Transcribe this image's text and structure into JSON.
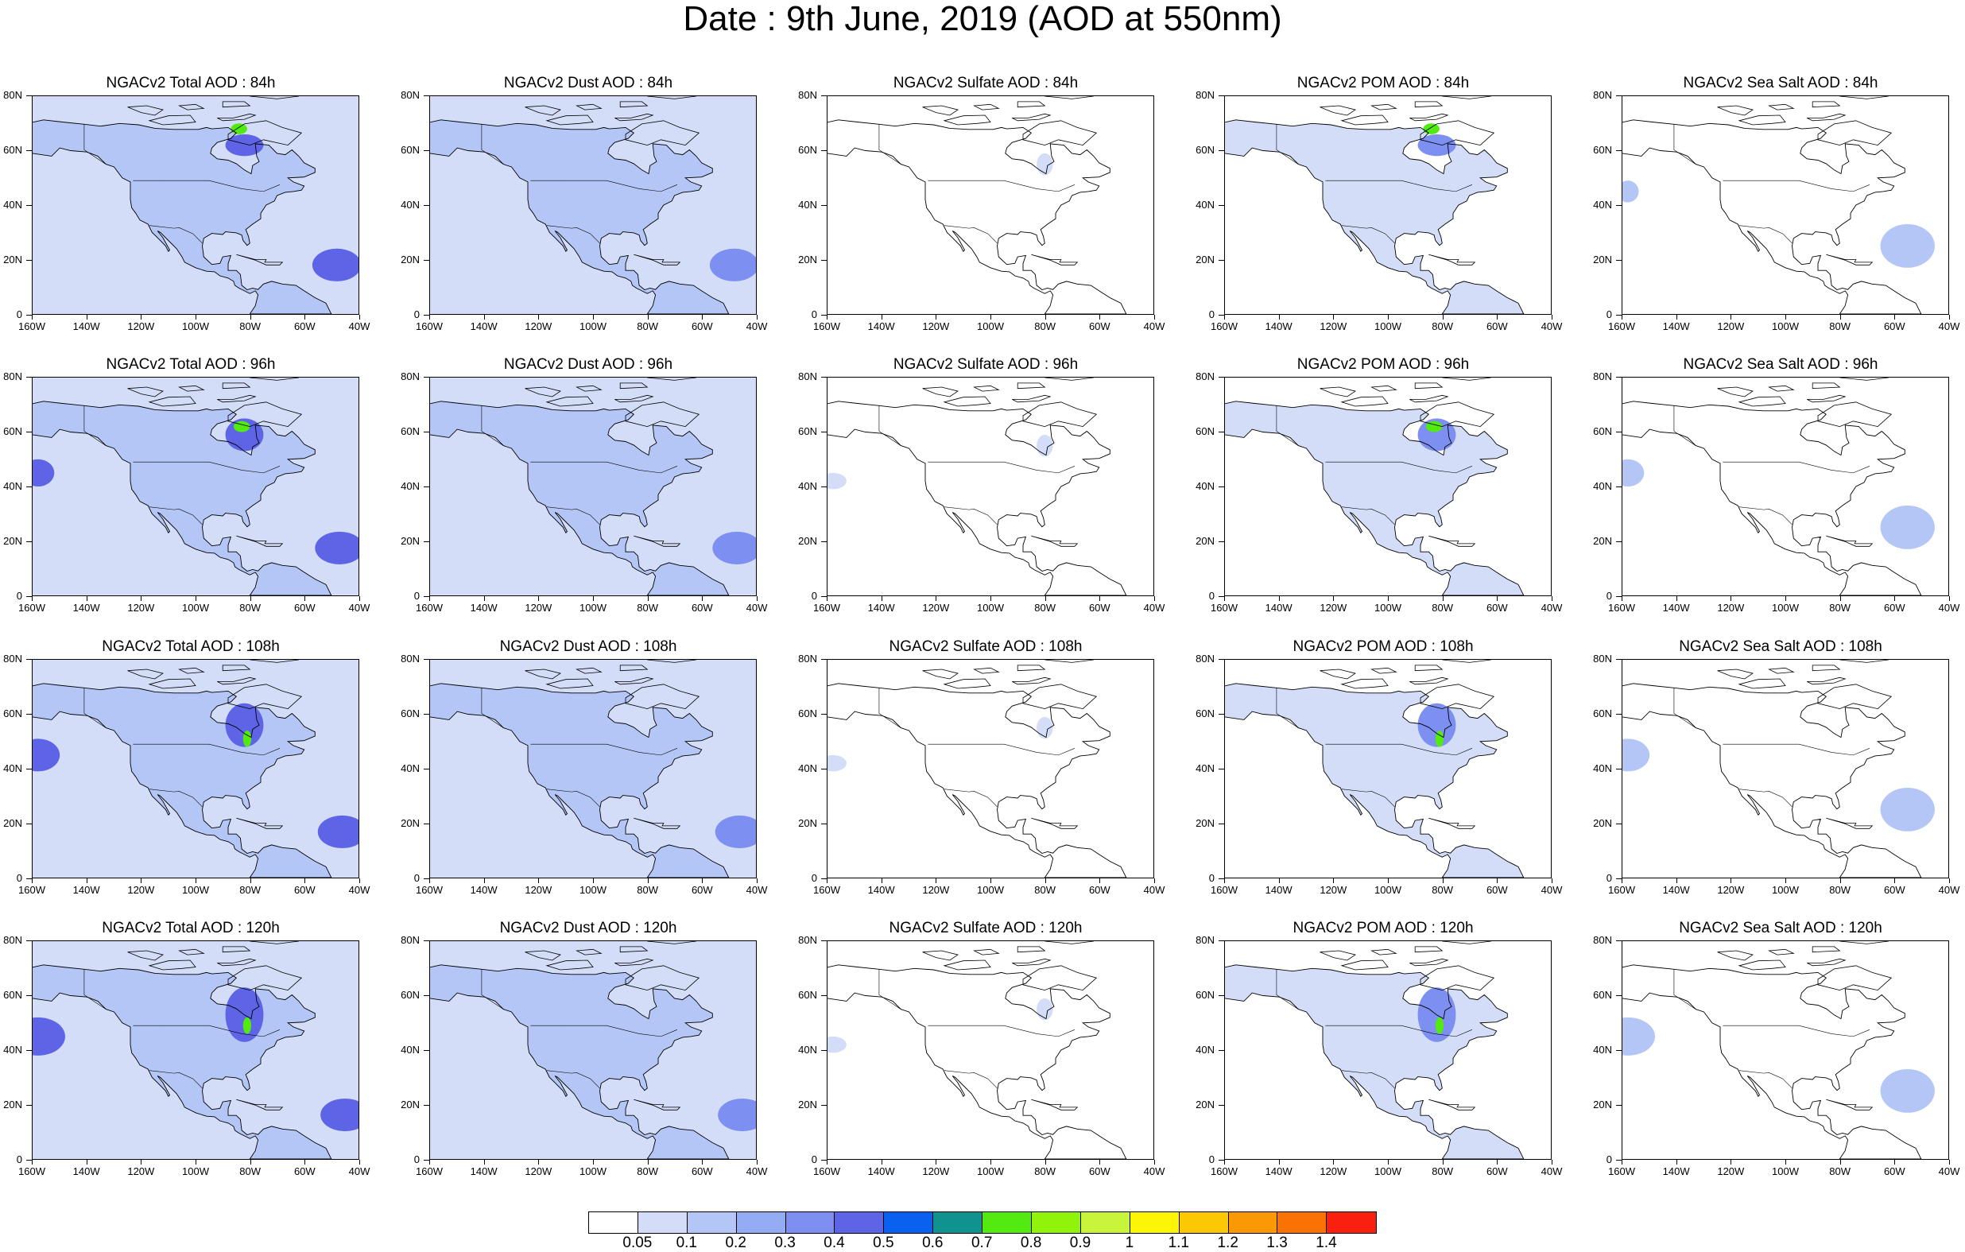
{
  "title": "Date : 9th June, 2019 (AOD at 550nm)",
  "panels": [
    {
      "title": "NGACv2 Total AOD : 84h",
      "field": "total"
    },
    {
      "title": "NGACv2 Dust AOD : 84h",
      "field": "dust"
    },
    {
      "title": "NGACv2 Sulfate AOD : 84h",
      "field": "sulfate"
    },
    {
      "title": "NGACv2 POM AOD : 84h",
      "field": "pom"
    },
    {
      "title": "NGACv2 Sea Salt AOD : 84h",
      "field": "seasalt"
    },
    {
      "title": "NGACv2 Total AOD : 96h",
      "field": "total"
    },
    {
      "title": "NGACv2 Dust AOD : 96h",
      "field": "dust"
    },
    {
      "title": "NGACv2 Sulfate AOD : 96h",
      "field": "sulfate"
    },
    {
      "title": "NGACv2 POM AOD : 96h",
      "field": "pom"
    },
    {
      "title": "NGACv2 Sea Salt AOD : 96h",
      "field": "seasalt"
    },
    {
      "title": "NGACv2 Total AOD : 108h",
      "field": "total"
    },
    {
      "title": "NGACv2 Dust AOD : 108h",
      "field": "dust"
    },
    {
      "title": "NGACv2 Sulfate AOD : 108h",
      "field": "sulfate"
    },
    {
      "title": "NGACv2 POM AOD : 108h",
      "field": "pom"
    },
    {
      "title": "NGACv2 Sea Salt AOD : 108h",
      "field": "seasalt"
    },
    {
      "title": "NGACv2 Total AOD : 120h",
      "field": "total"
    },
    {
      "title": "NGACv2 Dust AOD : 120h",
      "field": "dust"
    },
    {
      "title": "NGACv2 Sulfate AOD : 120h",
      "field": "sulfate"
    },
    {
      "title": "NGACv2 POM AOD : 120h",
      "field": "pom"
    },
    {
      "title": "NGACv2 Sea Salt  AOD : 120h",
      "field": "seasalt"
    }
  ],
  "map": {
    "lat_labels": [
      "80N",
      "60N",
      "40N",
      "20N",
      "0"
    ],
    "lon_labels": [
      "160W",
      "140W",
      "120W",
      "100W",
      "80W",
      "60W",
      "40W"
    ]
  },
  "colorbar": {
    "labels": [
      "0.05",
      "0.1",
      "0.2",
      "0.3",
      "0.4",
      "0.5",
      "0.6",
      "0.7",
      "0.8",
      "0.9",
      "1",
      "1.1",
      "1.2",
      "1.3",
      "1.4"
    ],
    "colors": [
      "#ffffff",
      "#d3ddf8",
      "#b4c6f5",
      "#94acf4",
      "#7d8ff0",
      "#5e64e6",
      "#0a60ef",
      "#10938e",
      "#52ea10",
      "#8ff409",
      "#c8f53b",
      "#fcf505",
      "#fcc804",
      "#fa9805",
      "#f87204",
      "#f92010"
    ]
  },
  "field_style": {
    "total": {
      "ocean": "#d3ddf8",
      "land": "#b4c6f5",
      "plume": "#5e64e6",
      "hot": "#52ea10"
    },
    "dust": {
      "ocean": "#d3ddf8",
      "land": "#b4c6f5",
      "plume": "#7d8ff0",
      "hot": ""
    },
    "sulfate": {
      "ocean": "#ffffff",
      "land": "#ffffff",
      "plume": "#d3ddf8",
      "hot": ""
    },
    "pom": {
      "ocean": "#ffffff",
      "land": "#d3ddf8",
      "plume": "#7d8ff0",
      "hot": "#52ea10"
    },
    "seasalt": {
      "ocean": "#ffffff",
      "land": "#ffffff",
      "plume": "#b4c6f5",
      "hot": ""
    }
  }
}
